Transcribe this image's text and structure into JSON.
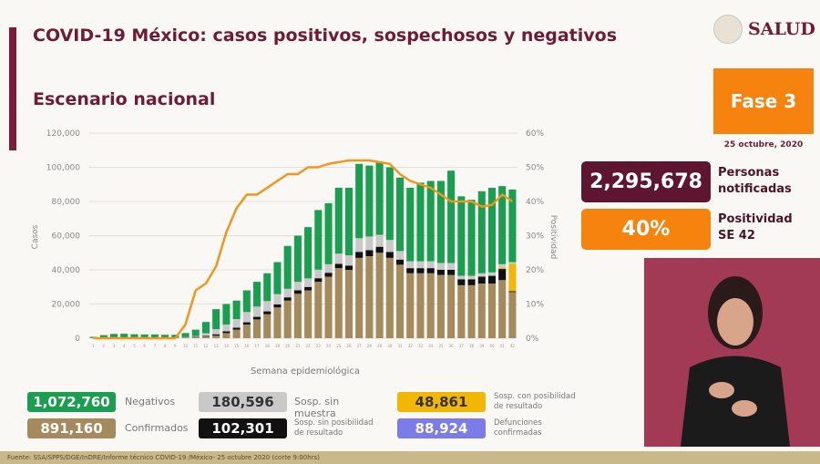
{
  "header": {
    "title": "COVID-19 México: casos positivos, sospechosos y negativos",
    "subtitle": "Escenario nacional",
    "logo_text": "SALUD"
  },
  "side": {
    "phase": "Fase 3",
    "date": "25 octubre, 2020",
    "notified_value": "2,295,678",
    "notified_label_1": "Personas",
    "notified_label_2": "notificadas",
    "positivity_value": "40%",
    "positivity_label_1": "Positividad",
    "positivity_label_2": "SE 42"
  },
  "legend": [
    {
      "value": "1,072,760",
      "label": "Negativos",
      "color": "#1a9e4f",
      "text_color": "#ffffff"
    },
    {
      "value": "180,596",
      "label": "Sosp. sin muestra",
      "color": "#c9c9c9",
      "text_color": "#333333"
    },
    {
      "value": "48,861",
      "label": "Sosp. con posibilidad de resultado",
      "color": "#f2b705",
      "text_color": "#333333"
    },
    {
      "value": "891,160",
      "label": "Confirmados",
      "color": "#a58a5e",
      "text_color": "#ffffff"
    },
    {
      "value": "102,301",
      "label": "Sosp. sin posibilidad de resultado",
      "color": "#111111",
      "text_color": "#ffffff"
    },
    {
      "value": "88,924",
      "label": "Defunciones confirmadas",
      "color": "#7b7bea",
      "text_color": "#ffffff"
    }
  ],
  "footer": "Fuente: SSA/SPPS/DGE/InDRE/Informe técnico COVID-19 /México- 25 octubre 2020 (corte 9:00hrs)",
  "chart_data": {
    "type": "bar",
    "stacked": true,
    "xlabel": "Semana epidemiológica",
    "ylabel": "Casos",
    "y2label": "Positividad",
    "ylim": [
      0,
      120000
    ],
    "y2lim": [
      0,
      60
    ],
    "yticks": [
      "0",
      "20,000",
      "40,000",
      "60,000",
      "80,000",
      "100,000",
      "120,000"
    ],
    "y2ticks": [
      "0%",
      "10%",
      "20%",
      "30%",
      "40%",
      "50%",
      "60%"
    ],
    "grid": true,
    "categories": [
      1,
      2,
      3,
      4,
      5,
      6,
      7,
      8,
      9,
      10,
      11,
      12,
      13,
      14,
      15,
      16,
      17,
      18,
      19,
      20,
      21,
      22,
      23,
      24,
      25,
      26,
      27,
      28,
      29,
      30,
      31,
      32,
      33,
      34,
      35,
      36,
      37,
      38,
      39,
      40,
      41,
      42
    ],
    "series": [
      {
        "name": "Confirmados",
        "color": "#a58a5e",
        "values": [
          0,
          100,
          200,
          200,
          150,
          150,
          150,
          150,
          100,
          300,
          600,
          1000,
          1500,
          3000,
          5000,
          8000,
          11000,
          14000,
          18000,
          22000,
          26000,
          28000,
          33000,
          36000,
          41000,
          40000,
          47000,
          48000,
          50000,
          47000,
          43000,
          38000,
          38000,
          38000,
          37000,
          37000,
          31000,
          31000,
          32000,
          32000,
          34000,
          27000
        ]
      },
      {
        "name": "Sosp. sin posibilidad de resultado",
        "color": "#111111",
        "values": [
          0,
          0,
          0,
          0,
          0,
          0,
          0,
          0,
          0,
          100,
          200,
          400,
          800,
          1000,
          1200,
          1300,
          1500,
          1700,
          1800,
          1900,
          2000,
          2000,
          2100,
          2300,
          2500,
          2500,
          3500,
          3500,
          3500,
          3500,
          3000,
          3000,
          3000,
          3000,
          3000,
          3000,
          3500,
          3500,
          4000,
          4500,
          6500,
          500
        ]
      },
      {
        "name": "Sosp. con posibilidad de resultado",
        "color": "#f2b705",
        "values": [
          0,
          0,
          0,
          0,
          0,
          0,
          0,
          0,
          0,
          0,
          0,
          0,
          0,
          0,
          0,
          0,
          0,
          0,
          0,
          0,
          0,
          0,
          0,
          0,
          0,
          0,
          0,
          0,
          0,
          0,
          0,
          0,
          0,
          0,
          0,
          0,
          0,
          0,
          0,
          0,
          800,
          16000
        ]
      },
      {
        "name": "Sosp. sin muestra",
        "color": "#c9c9c9",
        "values": [
          100,
          100,
          100,
          100,
          100,
          100,
          100,
          100,
          100,
          200,
          500,
          1500,
          3000,
          4000,
          5000,
          6000,
          6000,
          6000,
          6000,
          5000,
          5000,
          5000,
          5000,
          5000,
          6000,
          6000,
          8000,
          8000,
          7000,
          7000,
          5000,
          4000,
          4000,
          4000,
          4000,
          4000,
          2000,
          2000,
          2000,
          2000,
          2000,
          1000
        ]
      },
      {
        "name": "Negativos",
        "color": "#1a9e4f",
        "values": [
          700,
          1600,
          2200,
          2300,
          2050,
          1950,
          1950,
          1750,
          1800,
          2400,
          3700,
          6600,
          11700,
          12000,
          10800,
          12700,
          14500,
          16300,
          18700,
          25100,
          27000,
          30000,
          34900,
          35700,
          38500,
          39500,
          43500,
          41500,
          42500,
          42500,
          43000,
          43000,
          46000,
          47000,
          48000,
          54000,
          46500,
          44500,
          48000,
          49500,
          45700,
          42500
        ]
      }
    ],
    "line": {
      "name": "Positividad",
      "color": "#f0961e",
      "axis": "right",
      "values": [
        0,
        0,
        0,
        0,
        0,
        0,
        0,
        0,
        0,
        4,
        14,
        16,
        21,
        31,
        38,
        42,
        42,
        44,
        46,
        48,
        48,
        50,
        50,
        51,
        51.5,
        52,
        52,
        52,
        51.5,
        51,
        48,
        46,
        45,
        44,
        42,
        40,
        40,
        40,
        38.5,
        39,
        42,
        40
      ]
    }
  }
}
